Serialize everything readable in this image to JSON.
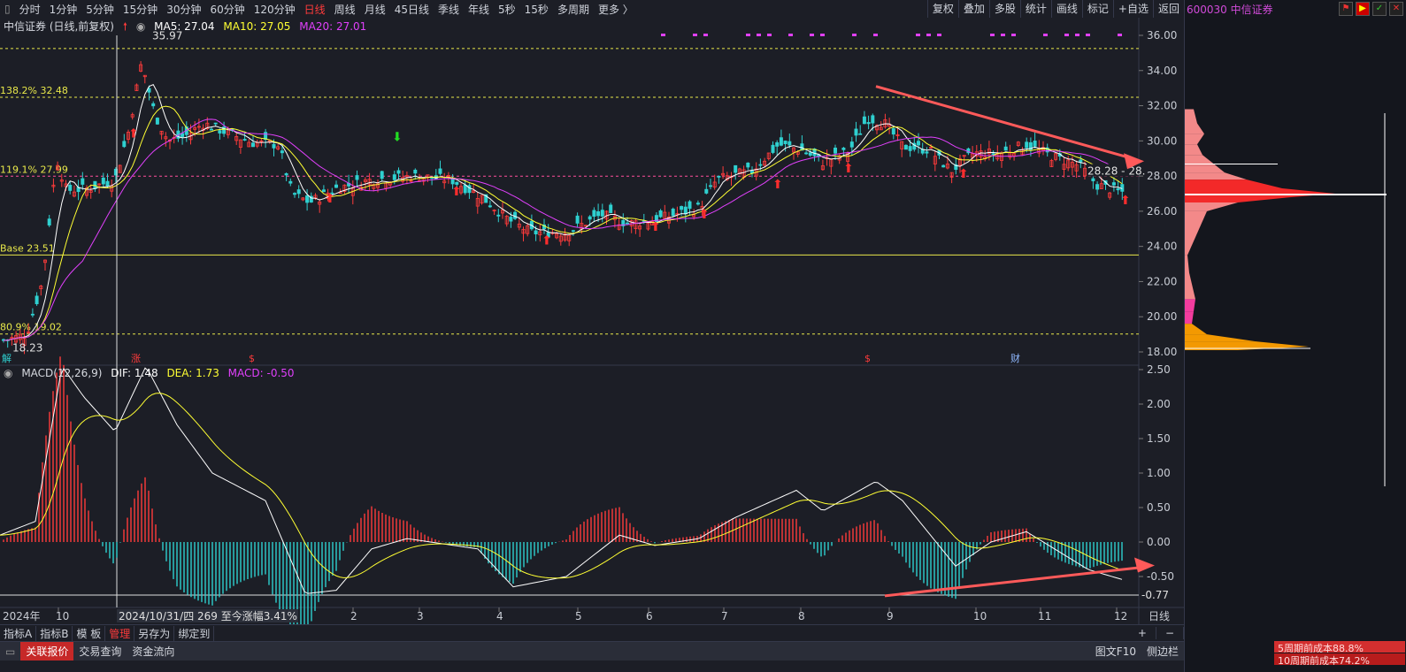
{
  "toolbar": {
    "timeframes": [
      "分时",
      "1分钟",
      "5分钟",
      "15分钟",
      "30分钟",
      "60分钟",
      "120分钟",
      "日线",
      "周线",
      "月线",
      "45日线",
      "季线",
      "年线",
      "5秒",
      "15秒",
      "多周期",
      "更多 〉"
    ],
    "active_index": 7,
    "right_buttons": [
      "复权",
      "叠加",
      "多股",
      "统计",
      "画线",
      "标记",
      "+自选",
      "返回"
    ]
  },
  "right_panel": {
    "code_name": "600030 中信证券"
  },
  "main_chart": {
    "title": "中信证券 (日线,前复权)",
    "ma5": "MA5: 27.04",
    "ma10": "MA10: 27.05",
    "ma20": "MA20: 27.01",
    "colors": {
      "ma5": "#ffffff",
      "ma10": "#ffff33",
      "ma20": "#e040fb",
      "up": "#ff3b3b",
      "down": "#2fd0d0"
    },
    "price_ticks": [
      "36.00",
      "34.00",
      "32.00",
      "30.00",
      "28.00",
      "26.00",
      "24.00",
      "22.00",
      "20.00",
      "18.00"
    ],
    "fib_labels": [
      "138.2% 32.48",
      "119.1% 27.99",
      "Base 23.51",
      "80.9% 19.02"
    ],
    "high_label": "35.97",
    "low_label": "18.23",
    "last_price_label": "28.28 - 28.",
    "event_markers": [
      "解",
      "涨",
      "$",
      "$",
      "财"
    ]
  },
  "macd": {
    "title": "MACD(12,26,9)",
    "dif": "DIF: 1.48",
    "dea": "DEA: 1.73",
    "macd": "MACD: -0.50",
    "ticks": [
      "2.50",
      "2.00",
      "1.50",
      "1.00",
      "0.50",
      "0.00",
      "-0.50"
    ],
    "min_label": "-0.77"
  },
  "xaxis": {
    "year_label": "2024年",
    "months": [
      "10",
      "2",
      "3",
      "4",
      "5",
      "6",
      "7",
      "8",
      "9",
      "10",
      "11",
      "12"
    ],
    "cursor_label": "2024/10/31/四 269 至今涨幅3.41%",
    "period_label": "日线"
  },
  "bottom_tabs": [
    "指标A",
    "指标B",
    "模 板",
    "管理",
    "另存为",
    "绑定到"
  ],
  "bottom_right": [
    "+",
    "−"
  ],
  "status_tabs": [
    "关联报价",
    "交易查询",
    "资金流向"
  ],
  "status_right": [
    "图文F10",
    "侧边栏"
  ],
  "cost_lines": [
    "5周期前成本88.8%",
    "10周期前成本74.2%"
  ]
}
